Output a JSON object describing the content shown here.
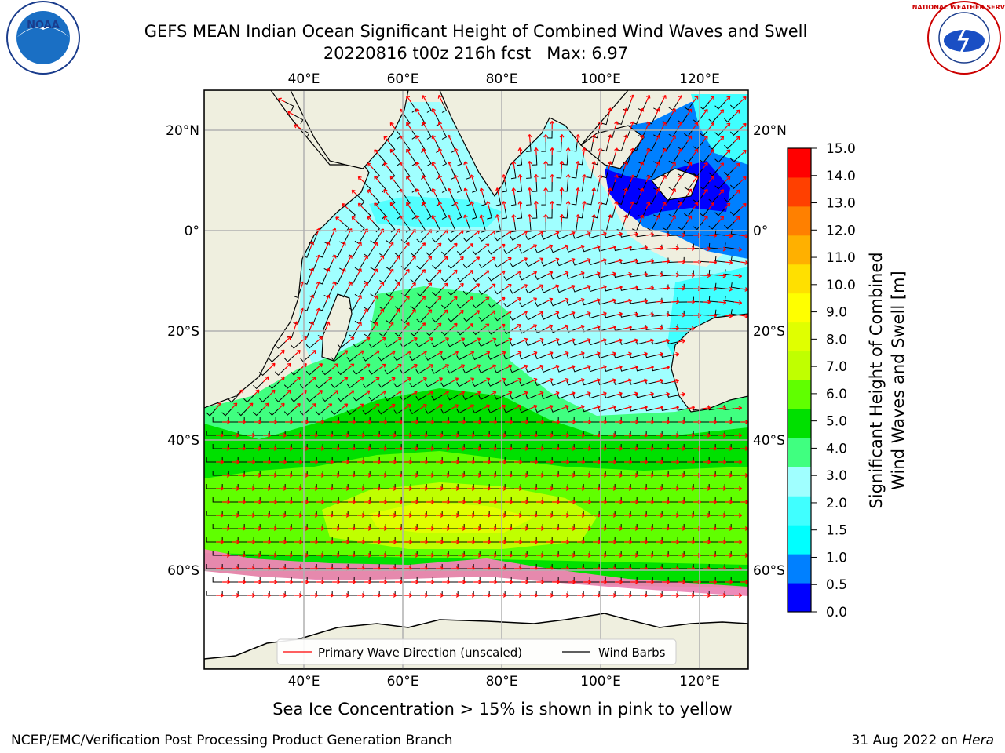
{
  "title": {
    "line1": "GEFS MEAN Indian Ocean Significant Height of Combined Wind Waves and Swell",
    "line2": "20220816 t00z 216h fcst   Max: 6.97"
  },
  "logos": {
    "left": "noaa-logo",
    "right": "national-weather-service-logo",
    "noaa_text": "NOAA",
    "nws_text": "NATIONAL WEATHER SERVICE"
  },
  "map": {
    "lon_labels": [
      "40°E",
      "60°E",
      "80°E",
      "100°E",
      "120°E"
    ],
    "lat_labels": [
      "20°N",
      "0°",
      "20°S",
      "40°S",
      "60°S"
    ],
    "legend": {
      "wave_direction": "Primary Wave Direction (unscaled)",
      "wind_barbs": "Wind Barbs"
    },
    "colors": {
      "land": "#efefdf",
      "ice": "#ffffff",
      "wave_arrow": "#ff0000",
      "barb": "#000000"
    }
  },
  "colorbar": {
    "label_line1": "Significant Height of Combined",
    "label_line2": "Wind Waves and Swell [m]",
    "ticks": [
      "0.0",
      "0.5",
      "1.0",
      "1.5",
      "2.0",
      "3.0",
      "4.0",
      "5.0",
      "6.0",
      "7.0",
      "8.0",
      "9.0",
      "10.0",
      "11.0",
      "12.0",
      "13.0",
      "14.0",
      "15.0"
    ],
    "colors": [
      "#0000ff",
      "#0080ff",
      "#00ffff",
      "#40ffff",
      "#a0ffff",
      "#40ff80",
      "#00e000",
      "#60ff00",
      "#c0ff00",
      "#e0ff00",
      "#ffff00",
      "#ffe000",
      "#ffb000",
      "#ff8000",
      "#ff4000",
      "#ff0000"
    ]
  },
  "subtitle": "Sea Ice Concentration > 15% is shown in pink to yellow",
  "footer": {
    "left": "NCEP/EMC/Verification Post Processing Product Generation Branch",
    "right_date": "31 Aug 2022 on ",
    "right_host": "Hera"
  }
}
